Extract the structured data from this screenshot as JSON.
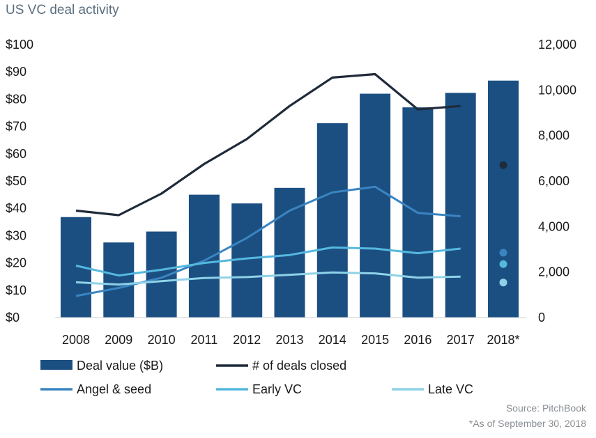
{
  "chart_data": {
    "type": "bar",
    "title": "US VC deal activity",
    "categories": [
      "2008",
      "2009",
      "2010",
      "2011",
      "2012",
      "2013",
      "2014",
      "2015",
      "2016",
      "2017",
      "2018*"
    ],
    "series": [
      {
        "name": "Deal value ($B)",
        "kind": "bar",
        "axis": "left",
        "color": "#1b4f82",
        "values": [
          36.8,
          27.5,
          31.5,
          45.0,
          41.8,
          47.5,
          71.2,
          82.0,
          77.0,
          82.3,
          86.8
        ]
      },
      {
        "name": "# of deals closed",
        "kind": "line",
        "axis": "right",
        "color": "#1f2a3a",
        "values": [
          4700,
          4500,
          5450,
          6750,
          7850,
          9300,
          10550,
          10700,
          9150,
          9300,
          6700
        ]
      },
      {
        "name": "Angel & seed",
        "kind": "line",
        "axis": "right",
        "color": "#3a85c1",
        "values": [
          950,
          1300,
          1750,
          2500,
          3500,
          4700,
          5500,
          5750,
          4600,
          4450,
          2850
        ]
      },
      {
        "name": "Early VC",
        "kind": "line",
        "axis": "right",
        "color": "#55b8df",
        "values": [
          2280,
          1850,
          2100,
          2400,
          2600,
          2750,
          3080,
          3030,
          2830,
          3030,
          2350
        ]
      },
      {
        "name": "Late VC",
        "kind": "line",
        "axis": "right",
        "color": "#8fd2e8",
        "values": [
          1550,
          1450,
          1600,
          1740,
          1780,
          1880,
          1980,
          1940,
          1750,
          1800,
          1540
        ]
      }
    ],
    "left_axis": {
      "ylim": [
        0,
        100
      ],
      "ticks": [
        "$0",
        "$10",
        "$20",
        "$30",
        "$40",
        "$50",
        "$60",
        "$70",
        "$80",
        "$90",
        "$100"
      ]
    },
    "right_axis": {
      "ylim": [
        0,
        12000
      ],
      "ticks": [
        "0",
        "2,000",
        "4,000",
        "6,000",
        "8,000",
        "10,000",
        "12,000"
      ]
    },
    "partial_year_note": "2018* shown as single markers for line series",
    "source": "Source: PitchBook",
    "footnote": "*As of September 30, 2018"
  }
}
